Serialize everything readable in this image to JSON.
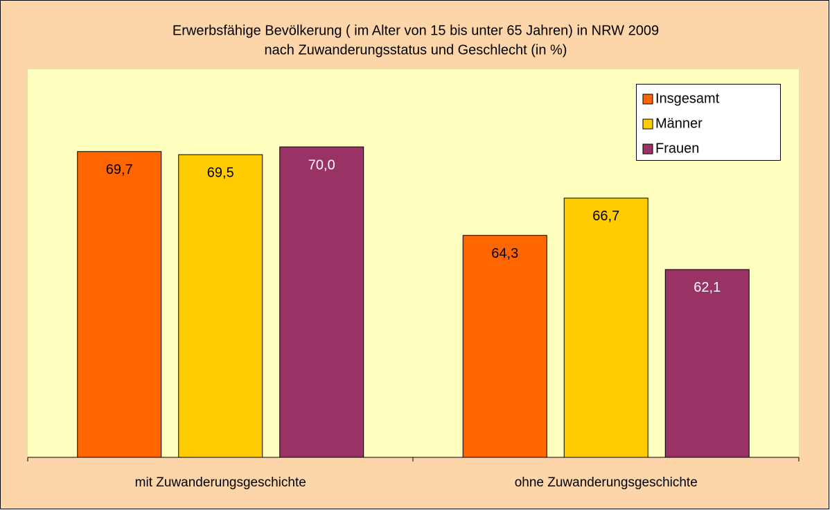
{
  "chart_data": {
    "type": "bar",
    "title": [
      "Erwerbsfähige Bevölkerung ( im Alter von 15 bis unter 65 Jahren) in NRW 2009",
      "nach Zuwanderungsstatus und Geschlecht (in %)"
    ],
    "categories": [
      "mit Zuwanderungsgeschichte",
      "ohne Zuwanderungsgeschichte"
    ],
    "series": [
      {
        "name": "Insgesamt",
        "color": "#ff6600",
        "values": [
          69.7,
          64.3
        ],
        "value_labels": [
          "69,7",
          "64,3"
        ]
      },
      {
        "name": "Männer",
        "color": "#ffcc00",
        "values": [
          69.5,
          66.7
        ],
        "value_labels": [
          "69,5",
          "66,7"
        ]
      },
      {
        "name": "Frauen",
        "color": "#993366",
        "values": [
          70.0,
          62.1
        ],
        "value_labels": [
          "70,0",
          "62,1"
        ]
      }
    ],
    "ylim": [
      50,
      75
    ],
    "legend": "top-right",
    "grid": false
  }
}
